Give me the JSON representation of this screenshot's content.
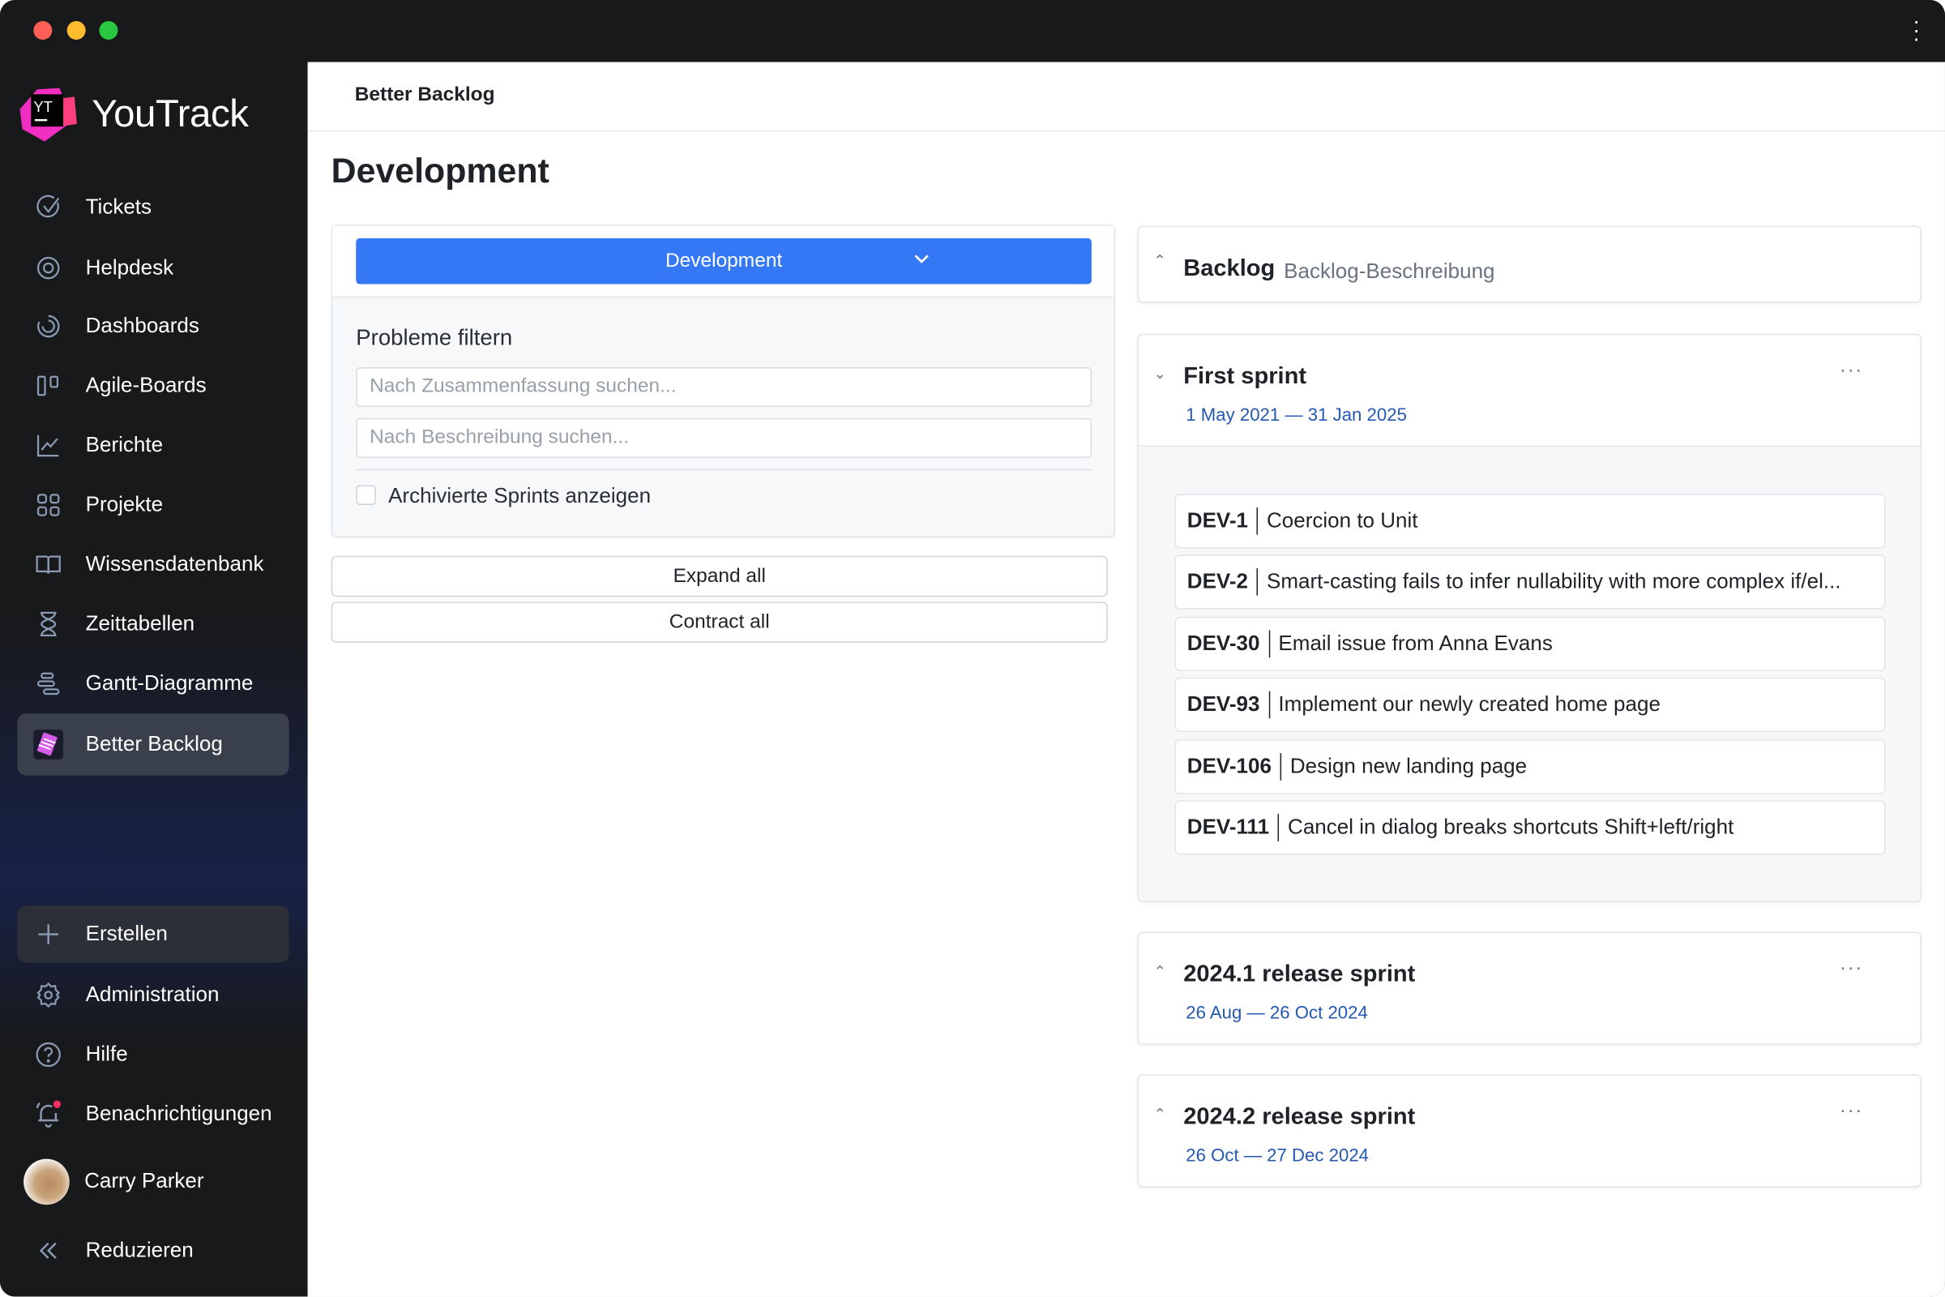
{
  "window": {
    "controls": [
      "close",
      "minimize",
      "maximize"
    ],
    "colors": {
      "close": "#fe5f57",
      "minimize": "#febc2e",
      "maximize": "#28c840"
    }
  },
  "app": {
    "name": "YouTrack",
    "logo_text": "YT"
  },
  "sidebar": {
    "items": [
      {
        "label": "Tickets",
        "icon": "check-circle-icon"
      },
      {
        "label": "Helpdesk",
        "icon": "lifebuoy-icon"
      },
      {
        "label": "Dashboards",
        "icon": "dashboard-icon"
      },
      {
        "label": "Agile-Boards",
        "icon": "board-icon"
      },
      {
        "label": "Berichte",
        "icon": "chart-icon"
      },
      {
        "label": "Projekte",
        "icon": "grid-icon"
      },
      {
        "label": "Wissensdatenbank",
        "icon": "book-icon"
      },
      {
        "label": "Zeittabellen",
        "icon": "hourglass-icon"
      },
      {
        "label": "Gantt-Diagramme",
        "icon": "gantt-icon"
      },
      {
        "label": "Better Backlog",
        "icon": "app-icon",
        "active": true
      }
    ],
    "bottom": {
      "create": "Erstellen",
      "admin": "Administration",
      "help": "Hilfe",
      "notifications": "Benachrichtigungen",
      "user": "Carry Parker",
      "collapse": "Reduzieren"
    }
  },
  "header": {
    "breadcrumb": "Better Backlog"
  },
  "page": {
    "title": "Development"
  },
  "filters": {
    "project": "Development",
    "title": "Probleme filtern",
    "summary_placeholder": "Nach Zusammenfassung suchen...",
    "description_placeholder": "Nach Beschreibung suchen...",
    "archived_label": "Archivierte Sprints anzeigen",
    "archived_checked": false,
    "expand_all": "Expand all",
    "contract_all": "Contract all"
  },
  "backlog": {
    "title": "Backlog",
    "description": "Backlog-Beschreibung"
  },
  "sprints": [
    {
      "title": "First sprint",
      "dates": "1 May 2021 — 31 Jan 2025",
      "expanded": true,
      "issues": [
        {
          "id": "DEV-1",
          "summary": "Coercion to Unit"
        },
        {
          "id": "DEV-2",
          "summary": "Smart-casting fails to infer nullability with more complex if/el..."
        },
        {
          "id": "DEV-30",
          "summary": "Email issue from Anna Evans"
        },
        {
          "id": "DEV-93",
          "summary": "Implement our newly created home page"
        },
        {
          "id": "DEV-106",
          "summary": "Design new landing page"
        },
        {
          "id": "DEV-111",
          "summary": "Cancel in dialog breaks shortcuts Shift+left/right"
        }
      ]
    },
    {
      "title": "2024.1 release sprint",
      "dates": "26 Aug — 26 Oct 2024",
      "expanded": false
    },
    {
      "title": "2024.2 release sprint",
      "dates": "26 Oct — 27 Dec 2024",
      "expanded": false
    }
  ],
  "colors": {
    "accent": "#3478f6",
    "dates": "#2458b3",
    "notification_dot": "#ff2e63"
  }
}
